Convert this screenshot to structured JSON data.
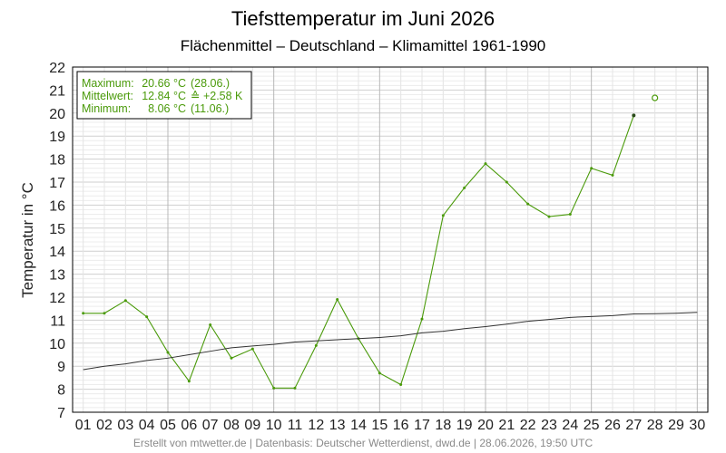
{
  "chart_data": {
    "type": "line",
    "title": "Tiefsttemperatur im Juni 2026",
    "subtitle": "Flächenmittel – Deutschland – Klimamittel 1961-1990",
    "ylabel": "Temperatur in °C",
    "xlabel": "",
    "ylim": [
      7,
      22
    ],
    "xlim": [
      0.5,
      30.5
    ],
    "grid": true,
    "x_ticks": [
      "01",
      "02",
      "03",
      "04",
      "05",
      "06",
      "07",
      "08",
      "09",
      "10",
      "11",
      "12",
      "13",
      "14",
      "15",
      "16",
      "17",
      "18",
      "19",
      "20",
      "21",
      "22",
      "23",
      "24",
      "25",
      "26",
      "27",
      "28",
      "29",
      "30"
    ],
    "y_ticks": [
      7,
      8,
      9,
      10,
      11,
      12,
      13,
      14,
      15,
      16,
      17,
      18,
      19,
      20,
      21,
      22
    ],
    "legend_position": "top-left",
    "legend": {
      "rows": [
        {
          "label": "Maximum:",
          "value": "20.66 °C",
          "extra": "(28.06.)"
        },
        {
          "label": "Mittelwert:",
          "value": "12.84 °C",
          "extra": "≙ +2.58 K"
        },
        {
          "label": "Minimum:",
          "value": "8.06 °C",
          "extra": "(11.06.)"
        }
      ]
    },
    "series": [
      {
        "color": "#4a9a0a",
        "x": [
          1,
          2,
          3,
          4,
          5,
          6,
          7,
          8,
          9,
          10,
          11,
          12,
          13,
          14,
          15,
          16,
          17,
          18,
          19,
          20,
          21,
          22,
          23,
          24,
          25,
          26,
          27
        ],
        "values": [
          11.3,
          11.3,
          11.85,
          11.15,
          9.6,
          8.35,
          10.8,
          9.35,
          9.75,
          8.05,
          8.05,
          9.9,
          11.9,
          10.2,
          8.7,
          8.2,
          11.05,
          15.55,
          16.75,
          17.8,
          17.0,
          16.05,
          15.5,
          15.6,
          17.6,
          17.3,
          19.9
        ]
      },
      {
        "color": "#4a9a0a",
        "marker": "open-circle",
        "x": [
          28
        ],
        "values": [
          20.66
        ]
      },
      {
        "color": "#333333",
        "x": [
          1,
          2,
          3,
          4,
          5,
          6,
          7,
          8,
          9,
          10,
          11,
          12,
          13,
          14,
          15,
          16,
          17,
          18,
          19,
          20,
          21,
          22,
          23,
          24,
          25,
          26,
          27,
          28,
          29,
          30
        ],
        "values": [
          8.85,
          9.0,
          9.1,
          9.25,
          9.35,
          9.5,
          9.65,
          9.8,
          9.88,
          9.95,
          10.05,
          10.1,
          10.15,
          10.2,
          10.25,
          10.32,
          10.45,
          10.52,
          10.63,
          10.72,
          10.83,
          10.95,
          11.03,
          11.12,
          11.16,
          11.2,
          11.27,
          11.28,
          11.3,
          11.34
        ]
      }
    ]
  },
  "footer": "Erstellt von mtwetter.de | Datenbasis: Deutscher Wetterdienst, dwd.de | 28.06.2026, 19:50 UTC"
}
